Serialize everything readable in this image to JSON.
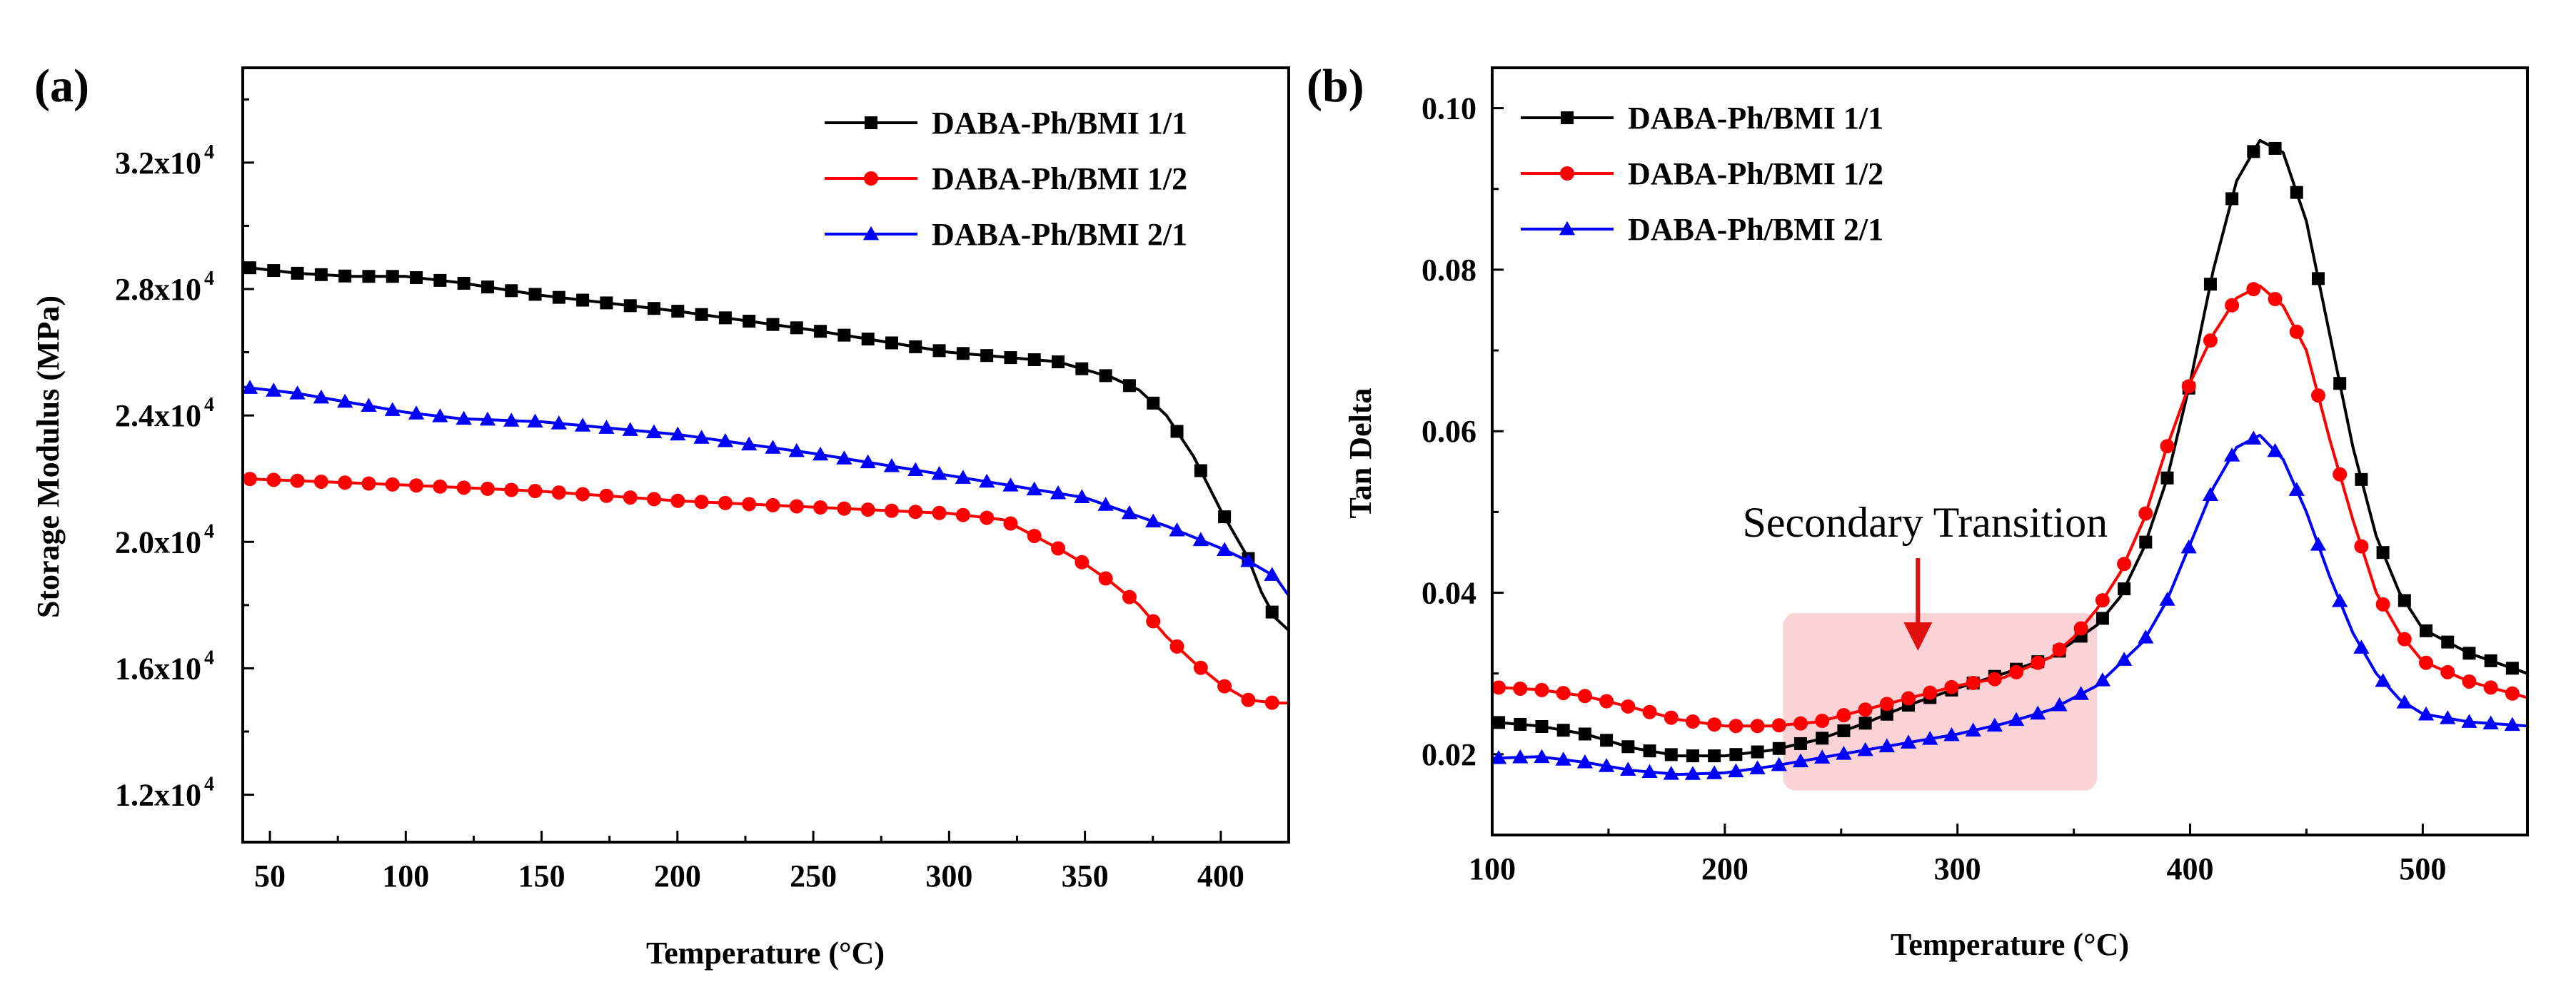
{
  "figure": {
    "panels": [
      "(a)",
      "(b)"
    ],
    "series_colors": [
      "#000000",
      "#ff0000",
      "#0000ff"
    ]
  },
  "chart_data": [
    {
      "type": "line",
      "panel_label": "(a)",
      "title": "",
      "xlabel": "Temperature (°C)",
      "ylabel": "Storage Modulus (MPa)",
      "xlim": [
        40,
        425
      ],
      "ylim": [
        10500,
        35000
      ],
      "x_ticks": [
        50,
        100,
        150,
        200,
        250,
        300,
        350,
        400
      ],
      "x_tick_labels": [
        "50",
        "100",
        "150",
        "200",
        "250",
        "300",
        "350",
        "400"
      ],
      "y_ticks": [
        12000,
        16000,
        20000,
        24000,
        28000,
        32000
      ],
      "y_tick_base": [
        "1.2x10",
        "1.6x10",
        "2.0x10",
        "2.4x10",
        "2.8x10",
        "3.2x10"
      ],
      "y_tick_exponent": "4",
      "legend_position": "top-right",
      "series": [
        {
          "name": "DABA-Ph/BMI 1/1",
          "color": "#000000",
          "marker": "square",
          "x": [
            40,
            60,
            80,
            100,
            110,
            120,
            150,
            200,
            250,
            300,
            340,
            360,
            370,
            380,
            390,
            400,
            410,
            415,
            420,
            425
          ],
          "y": [
            28700,
            28500,
            28400,
            28400,
            28300,
            28200,
            27800,
            27300,
            26700,
            26000,
            25700,
            25200,
            24800,
            24000,
            22700,
            21000,
            19500,
            18400,
            17600,
            17200
          ]
        },
        {
          "name": "DABA-Ph/BMI 1/2",
          "color": "#ff0000",
          "marker": "circle",
          "x": [
            40,
            100,
            150,
            200,
            250,
            300,
            320,
            340,
            350,
            360,
            370,
            380,
            390,
            400,
            410,
            420,
            425
          ],
          "y": [
            22000,
            21800,
            21600,
            21300,
            21100,
            20900,
            20700,
            19800,
            19300,
            18700,
            18000,
            17000,
            16200,
            15500,
            15000,
            14900,
            14900
          ]
        },
        {
          "name": "DABA-Ph/BMI 2/1",
          "color": "#0000ff",
          "marker": "triangle",
          "x": [
            40,
            60,
            80,
            100,
            120,
            150,
            200,
            250,
            300,
            350,
            380,
            400,
            410,
            420,
            425
          ],
          "y": [
            24900,
            24700,
            24400,
            24100,
            23900,
            23800,
            23400,
            22800,
            22100,
            21400,
            20500,
            19800,
            19400,
            18900,
            18300
          ]
        }
      ]
    },
    {
      "type": "line",
      "panel_label": "(b)",
      "title": "",
      "xlabel": "Temperature (°C)",
      "ylabel": "Tan Delta",
      "xlim": [
        100,
        545
      ],
      "ylim": [
        0.01,
        0.105
      ],
      "x_ticks": [
        100,
        200,
        300,
        400,
        500
      ],
      "x_tick_labels": [
        "100",
        "200",
        "300",
        "400",
        "500"
      ],
      "y_ticks": [
        0.02,
        0.04,
        0.06,
        0.08,
        0.1
      ],
      "y_tick_labels": [
        "0.02",
        "0.04",
        "0.06",
        "0.08",
        "0.10"
      ],
      "legend_position": "top-left",
      "annotation": {
        "text": "Secondary Transition",
        "highlight_x": [
          225,
          360
        ],
        "highlight_y": [
          0.0155,
          0.0375
        ],
        "arrow_x": 283
      },
      "series": [
        {
          "name": "DABA-Ph/BMI 1/1",
          "color": "#000000",
          "marker": "square",
          "x": [
            100,
            120,
            140,
            160,
            180,
            200,
            220,
            240,
            260,
            280,
            300,
            320,
            340,
            360,
            370,
            380,
            390,
            400,
            410,
            420,
            430,
            440,
            450,
            460,
            470,
            480,
            490,
            500,
            520,
            545
          ],
          "y": [
            0.024,
            0.0235,
            0.0225,
            0.0208,
            0.0198,
            0.0198,
            0.0205,
            0.0218,
            0.0238,
            0.0262,
            0.0282,
            0.03,
            0.032,
            0.036,
            0.0395,
            0.0455,
            0.054,
            0.066,
            0.08,
            0.091,
            0.096,
            0.0945,
            0.086,
            0.072,
            0.058,
            0.047,
            0.04,
            0.0355,
            0.0325,
            0.03
          ]
        },
        {
          "name": "DABA-Ph/BMI 1/2",
          "color": "#ff0000",
          "marker": "circle",
          "x": [
            100,
            120,
            140,
            160,
            180,
            200,
            220,
            240,
            260,
            280,
            300,
            320,
            340,
            350,
            360,
            370,
            380,
            390,
            400,
            410,
            420,
            430,
            440,
            450,
            460,
            470,
            480,
            490,
            500,
            520,
            545
          ],
          "y": [
            0.0283,
            0.028,
            0.0272,
            0.0258,
            0.0243,
            0.0235,
            0.0235,
            0.024,
            0.0255,
            0.027,
            0.0285,
            0.0295,
            0.032,
            0.0345,
            0.038,
            0.0425,
            0.049,
            0.058,
            0.066,
            0.072,
            0.0765,
            0.078,
            0.0755,
            0.07,
            0.059,
            0.049,
            0.04,
            0.035,
            0.0315,
            0.029,
            0.027
          ]
        },
        {
          "name": "DABA-Ph/BMI 2/1",
          "color": "#0000ff",
          "marker": "triangle",
          "x": [
            100,
            120,
            140,
            160,
            180,
            200,
            220,
            240,
            260,
            280,
            300,
            320,
            340,
            360,
            380,
            390,
            400,
            410,
            420,
            430,
            440,
            450,
            460,
            470,
            480,
            490,
            500,
            520,
            545
          ],
          "y": [
            0.0195,
            0.0197,
            0.019,
            0.018,
            0.0175,
            0.0177,
            0.0185,
            0.0195,
            0.0205,
            0.0215,
            0.0225,
            0.0238,
            0.0255,
            0.0285,
            0.034,
            0.039,
            0.046,
            0.053,
            0.058,
            0.0595,
            0.0565,
            0.05,
            0.042,
            0.035,
            0.03,
            0.0268,
            0.025,
            0.024,
            0.0235
          ]
        }
      ]
    }
  ]
}
